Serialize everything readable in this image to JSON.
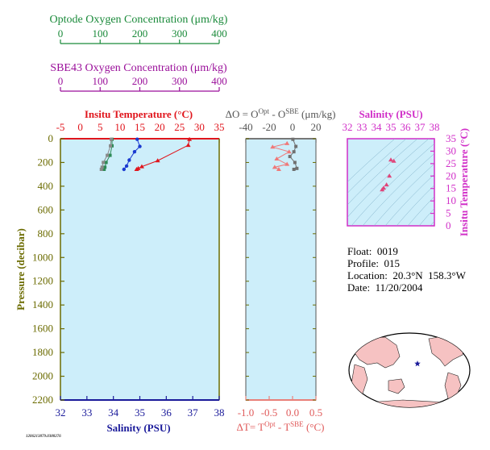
{
  "optode_axis": {
    "title": "Optode Oxygen Concentration (μm/kg)",
    "ticks": [
      "0",
      "100",
      "200",
      "300",
      "400"
    ],
    "color": "#1a8a3a"
  },
  "sbe_axis": {
    "title": "SBE43 Oxygen Concentration (μm/kg)",
    "ticks": [
      "0",
      "100",
      "200",
      "300",
      "400"
    ],
    "color": "#9a0f9a"
  },
  "main_panel": {
    "top_title": "Insitu Temperature (°C)",
    "top_ticks": [
      "-5",
      "0",
      "5",
      "10",
      "15",
      "20",
      "25",
      "30",
      "35"
    ],
    "bottom_title": "Salinity (PSU)",
    "bottom_ticks": [
      "32",
      "33",
      "34",
      "35",
      "36",
      "37",
      "38"
    ],
    "ylabel": "Pressure (decibar)",
    "y_ticks": [
      "0",
      "200",
      "400",
      "600",
      "800",
      "1000",
      "1200",
      "1400",
      "1600",
      "1800",
      "2000",
      "2200"
    ],
    "temp_color": "#e0151c",
    "sal_color": "#1a1a9a",
    "bg_color": "#cdeefa"
  },
  "diff_panel": {
    "top_title_parts": [
      "ΔO = O",
      "Opt",
      " - O",
      "SBE",
      " (μm/kg)"
    ],
    "top_ticks": [
      "-40",
      "-20",
      "0",
      "20"
    ],
    "bottom_title_parts": [
      "ΔT= T",
      "Opt",
      " - T",
      "SBE",
      " (°C)"
    ],
    "bottom_ticks": [
      "-1.0",
      "-0.5",
      "0.0",
      "0.5"
    ]
  },
  "ts_panel": {
    "top_title": "Salinity (PSU)",
    "top_ticks": [
      "32",
      "33",
      "34",
      "35",
      "36",
      "37",
      "38"
    ],
    "right_title": "Insitu Temperature (°C)",
    "right_ticks": [
      "0",
      "5",
      "10",
      "15",
      "20",
      "25",
      "30",
      "35"
    ],
    "color": "#d12fc8"
  },
  "float_info": {
    "float_label": "Float:",
    "float_value": "0019",
    "profile_label": "Profile:",
    "profile_value": "015",
    "location_label": "Location:",
    "location_value": "20.3°N  158.3°W",
    "date_label": "Date:",
    "date_value": "11/20/2004"
  },
  "footer_id": "1206213879.0388276",
  "chart_data": [
    {
      "type": "line",
      "name": "temperature_profile",
      "x_unit": "°C",
      "y_unit": "decibar",
      "xlim": [
        -5,
        35
      ],
      "ylim": [
        2200,
        0
      ],
      "points": [
        [
          27.5,
          5
        ],
        [
          27.2,
          55
        ],
        [
          19.5,
          185
        ],
        [
          15.5,
          235
        ],
        [
          14.6,
          250
        ],
        [
          14.2,
          258
        ]
      ]
    },
    {
      "type": "line",
      "name": "salinity_profile",
      "xlim": [
        32,
        38
      ],
      "ylim": [
        2200,
        0
      ],
      "points": [
        [
          34.9,
          5
        ],
        [
          35.0,
          65
        ],
        [
          34.8,
          110
        ],
        [
          34.6,
          180
        ],
        [
          34.5,
          230
        ],
        [
          34.4,
          258
        ]
      ]
    },
    {
      "type": "line",
      "name": "optode_oxygen_profile",
      "xlim": [
        0,
        400
      ],
      "ylim": [
        2200,
        0
      ],
      "points": [
        [
          130,
          5
        ],
        [
          130,
          60
        ],
        [
          125,
          140
        ],
        [
          115,
          200
        ],
        [
          112,
          240
        ],
        [
          110,
          258
        ]
      ]
    },
    {
      "type": "line",
      "name": "sbe43_oxygen_profile",
      "xlim": [
        0,
        400
      ],
      "ylim": [
        2200,
        0
      ],
      "points": [
        [
          128,
          5
        ],
        [
          126,
          60
        ],
        [
          118,
          140
        ],
        [
          108,
          200
        ],
        [
          105,
          240
        ],
        [
          103,
          258
        ]
      ]
    },
    {
      "type": "line",
      "name": "delta_o_profile",
      "xlim": [
        -45,
        25
      ],
      "ylim": [
        2200,
        0
      ],
      "points": [
        [
          2,
          5
        ],
        [
          5,
          65
        ],
        [
          3,
          110
        ],
        [
          -1,
          150
        ],
        [
          4,
          200
        ],
        [
          6,
          250
        ],
        [
          3,
          258
        ]
      ]
    },
    {
      "type": "line",
      "name": "delta_t_profile",
      "xlim": [
        -1.1,
        0.6
      ],
      "ylim": [
        2200,
        0
      ],
      "points": [
        [
          -0.1,
          40
        ],
        [
          -0.45,
          70
        ],
        [
          -0.05,
          110
        ],
        [
          -0.35,
          170
        ],
        [
          -0.1,
          215
        ],
        [
          -0.4,
          240
        ],
        [
          -0.3,
          258
        ]
      ]
    },
    {
      "type": "scatter",
      "name": "ts_diagram",
      "xlim": [
        32,
        38
      ],
      "ylim": [
        0,
        35
      ],
      "points": [
        [
          35.0,
          26.5
        ],
        [
          35.2,
          26.0
        ],
        [
          34.9,
          20.0
        ],
        [
          34.7,
          16.5
        ],
        [
          34.5,
          15.2
        ],
        [
          34.4,
          14.5
        ]
      ]
    }
  ]
}
